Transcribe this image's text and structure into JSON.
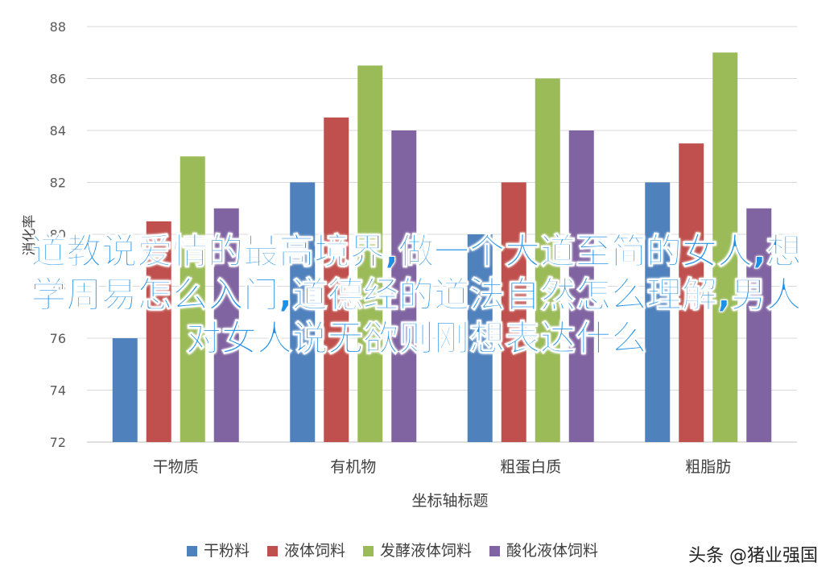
{
  "chart_data": {
    "type": "bar",
    "categories": [
      "干物质",
      "有机物",
      "粗蛋白质",
      "粗脂肪"
    ],
    "series": [
      {
        "name": "干粉料",
        "color": "#4f81bd",
        "values": [
          76,
          82,
          80,
          82
        ]
      },
      {
        "name": "液体饲料",
        "color": "#c0504d",
        "values": [
          80.5,
          84.5,
          82,
          83.5
        ]
      },
      {
        "name": "发酵液体饲料",
        "color": "#9bbb59",
        "values": [
          83,
          86.5,
          86,
          87
        ]
      },
      {
        "name": "酸化液体饲料",
        "color": "#8064a2",
        "values": [
          81,
          84,
          84,
          81
        ]
      }
    ],
    "ylim": [
      72,
      88
    ],
    "yticks": [
      72,
      74,
      76,
      78,
      80,
      82,
      84,
      86,
      88
    ],
    "xlabel": "坐标轴标题",
    "ylabel": "消化率",
    "grid": true,
    "legend": "bottom"
  },
  "overlay_text": "道教说爱情的最高境界,做一个大道至简的女人,想学周易怎么入门,道德经的道法自然怎么理解,男人对女人说无欲则刚想表达什么",
  "watermark": "头条 @猪业强国"
}
